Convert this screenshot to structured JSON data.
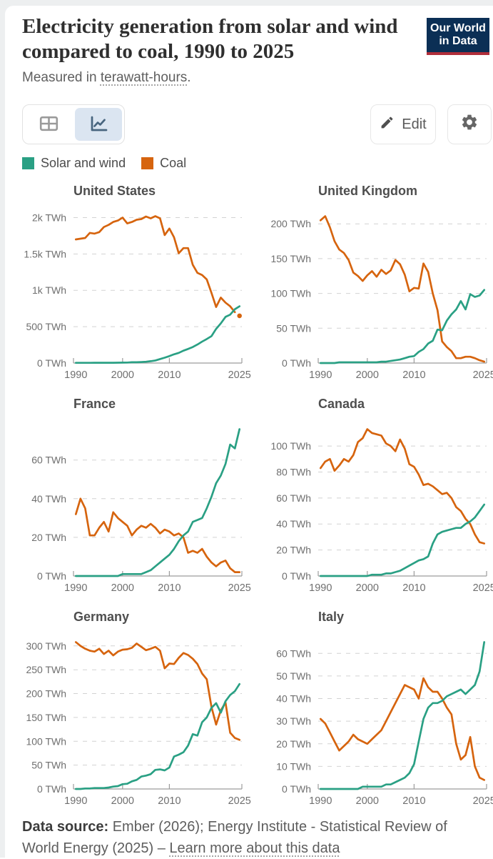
{
  "header": {
    "title": "Electricity generation from solar and wind compared to coal, 1990 to 2025",
    "subtitle_prefix": "Measured in ",
    "subtitle_term": "terawatt-hours",
    "subtitle_suffix": ".",
    "logo_line1": "Our World",
    "logo_line2": "in Data",
    "logo_bg_color": "#0b2f55",
    "logo_bar_color": "#b02e3a"
  },
  "toolbar": {
    "edit_label": "Edit"
  },
  "legend": {
    "items": [
      {
        "label": "Solar and wind",
        "color": "#2aa084"
      },
      {
        "label": "Coal",
        "color": "#d6640e"
      }
    ]
  },
  "footer": {
    "source_label": "Data source:",
    "source_text": " Ember (2026); Energy Institute - Statistical Review of World Energy (2025) – ",
    "link_label": "Learn more about this data"
  },
  "chart_config": {
    "unit": "TWh",
    "x_tick_years": [
      1990,
      2000,
      2010,
      2025
    ],
    "x_tick_labels": [
      "1990",
      "2000",
      "2010",
      "2025"
    ],
    "grid": "dashed",
    "legend_position": "top"
  },
  "chart_data": [
    {
      "type": "line",
      "title": "United States",
      "x_start_year": 1990,
      "ytick_values": [
        0,
        500,
        1000,
        1500,
        2000
      ],
      "ytick_labels": [
        "0 TWh",
        "500 TWh",
        "1k TWh",
        "1.5k TWh",
        "2k TWh"
      ],
      "series": [
        {
          "name": "Coal",
          "color": "#d6640e",
          "dot_last": true,
          "values": [
            1700,
            1710,
            1720,
            1790,
            1780,
            1800,
            1870,
            1900,
            1940,
            1960,
            2000,
            1920,
            1940,
            1970,
            1980,
            2015,
            1990,
            2020,
            1990,
            1760,
            1850,
            1730,
            1510,
            1580,
            1580,
            1350,
            1240,
            1210,
            1150,
            965,
            770,
            900,
            830,
            780,
            700,
            650
          ]
        },
        {
          "name": "Solar and wind",
          "color": "#2aa084",
          "values": [
            3,
            3,
            3,
            3,
            4,
            4,
            4,
            4,
            4,
            5,
            6,
            7,
            11,
            11,
            14,
            18,
            26,
            35,
            55,
            74,
            95,
            120,
            140,
            170,
            194,
            220,
            255,
            295,
            330,
            370,
            470,
            545,
            635,
            665,
            740,
            780
          ]
        }
      ]
    },
    {
      "type": "line",
      "title": "United Kingdom",
      "x_start_year": 1990,
      "ytick_values": [
        0,
        50,
        100,
        150,
        200
      ],
      "ytick_labels": [
        "0 TWh",
        "50 TWh",
        "100 TWh",
        "150 TWh",
        "200 TWh"
      ],
      "series": [
        {
          "name": "Coal",
          "color": "#d6640e",
          "values": [
            205,
            211,
            195,
            175,
            163,
            158,
            148,
            130,
            125,
            118,
            126,
            132,
            124,
            134,
            128,
            133,
            148,
            142,
            127,
            103,
            108,
            107,
            143,
            131,
            100,
            76,
            31,
            23,
            17,
            7,
            7,
            9,
            9,
            7,
            4,
            2
          ]
        },
        {
          "name": "Solar and wind",
          "color": "#2aa084",
          "values": [
            0,
            0,
            0,
            0,
            1,
            1,
            1,
            1,
            1,
            1,
            1,
            1,
            1,
            2,
            2,
            3,
            4,
            5,
            7,
            9,
            10,
            16,
            20,
            28,
            32,
            48,
            47,
            61,
            70,
            77,
            89,
            77,
            99,
            95,
            97,
            105
          ]
        }
      ]
    },
    {
      "type": "line",
      "title": "France",
      "x_start_year": 1990,
      "ytick_values": [
        0,
        20,
        40,
        60
      ],
      "ytick_labels": [
        "0 TWh",
        "20 TWh",
        "40 TWh",
        "60 TWh"
      ],
      "series": [
        {
          "name": "Coal",
          "color": "#d6640e",
          "values": [
            32,
            40,
            35,
            21,
            21,
            25,
            28,
            23,
            33,
            30,
            28,
            26,
            21,
            24,
            26,
            25,
            27,
            25,
            22,
            24,
            23,
            21,
            22,
            20,
            12,
            13,
            12,
            14,
            10,
            7,
            5,
            7,
            8,
            4,
            2,
            2
          ]
        },
        {
          "name": "Solar and wind",
          "color": "#2aa084",
          "values": [
            0,
            0,
            0,
            0,
            0,
            0,
            0,
            0,
            0,
            0,
            1,
            1,
            1,
            1,
            1,
            2,
            3,
            5,
            7,
            9,
            11,
            14,
            18,
            21,
            23,
            28,
            29,
            30,
            35,
            41,
            48,
            52,
            58,
            68,
            66,
            76
          ]
        }
      ]
    },
    {
      "type": "line",
      "title": "Canada",
      "x_start_year": 1990,
      "ytick_values": [
        0,
        20,
        40,
        60,
        80,
        100
      ],
      "ytick_labels": [
        "0 TWh",
        "20 TWh",
        "40 TWh",
        "60 TWh",
        "80 TWh",
        "100 TWh"
      ],
      "series": [
        {
          "name": "Coal",
          "color": "#d6640e",
          "values": [
            83,
            88,
            90,
            81,
            85,
            90,
            88,
            93,
            103,
            106,
            113,
            110,
            109,
            108,
            102,
            100,
            96,
            105,
            98,
            86,
            84,
            78,
            70,
            71,
            69,
            66,
            63,
            64,
            60,
            53,
            50,
            44,
            40,
            32,
            26,
            25
          ]
        },
        {
          "name": "Solar and wind",
          "color": "#2aa084",
          "values": [
            0,
            0,
            0,
            0,
            0,
            0,
            0,
            0,
            0,
            0,
            0,
            1,
            1,
            1,
            2,
            2,
            3,
            4,
            6,
            8,
            10,
            12,
            13,
            15,
            25,
            32,
            34,
            35,
            36,
            37,
            37,
            40,
            42,
            45,
            50,
            55
          ]
        }
      ]
    },
    {
      "type": "line",
      "title": "Germany",
      "x_start_year": 1990,
      "ytick_values": [
        0,
        50,
        100,
        150,
        200,
        250,
        300
      ],
      "ytick_labels": [
        "0 TWh",
        "50 TWh",
        "100 TWh",
        "150 TWh",
        "200 TWh",
        "250 TWh",
        "300 TWh"
      ],
      "series": [
        {
          "name": "Coal",
          "color": "#d6640e",
          "values": [
            308,
            300,
            294,
            290,
            288,
            294,
            283,
            290,
            280,
            288,
            292,
            293,
            296,
            305,
            298,
            291,
            294,
            298,
            290,
            253,
            263,
            262,
            275,
            285,
            281,
            273,
            262,
            242,
            230,
            172,
            135,
            165,
            181,
            118,
            107,
            103
          ]
        },
        {
          "name": "Solar and wind",
          "color": "#2aa084",
          "values": [
            0,
            0,
            1,
            1,
            2,
            2,
            2,
            3,
            5,
            6,
            10,
            11,
            16,
            19,
            26,
            28,
            31,
            40,
            41,
            39,
            45,
            68,
            72,
            77,
            91,
            115,
            112,
            140,
            150,
            170,
            180,
            160,
            184,
            197,
            205,
            220
          ]
        }
      ]
    },
    {
      "type": "line",
      "title": "Italy",
      "x_start_year": 1990,
      "ytick_values": [
        0,
        10,
        20,
        30,
        40,
        50,
        60
      ],
      "ytick_labels": [
        "0 TWh",
        "10 TWh",
        "20 TWh",
        "30 TWh",
        "40 TWh",
        "50 TWh",
        "60 TWh"
      ],
      "series": [
        {
          "name": "Coal",
          "color": "#d6640e",
          "values": [
            31,
            29,
            25,
            21,
            17,
            19,
            21,
            24,
            22,
            21,
            20,
            22,
            24,
            26,
            30,
            34,
            38,
            42,
            46,
            45,
            44,
            40,
            49,
            45,
            43,
            43,
            40,
            36,
            33,
            20,
            13,
            15,
            23,
            10,
            5,
            4
          ]
        },
        {
          "name": "Solar and wind",
          "color": "#2aa084",
          "values": [
            0,
            0,
            0,
            0,
            0,
            0,
            0,
            0,
            0,
            1,
            1,
            1,
            1,
            1,
            2,
            2,
            3,
            4,
            5,
            7,
            11,
            21,
            31,
            36,
            38,
            38,
            39,
            41,
            42,
            43,
            44,
            42,
            44,
            46,
            52,
            65
          ]
        }
      ]
    }
  ]
}
